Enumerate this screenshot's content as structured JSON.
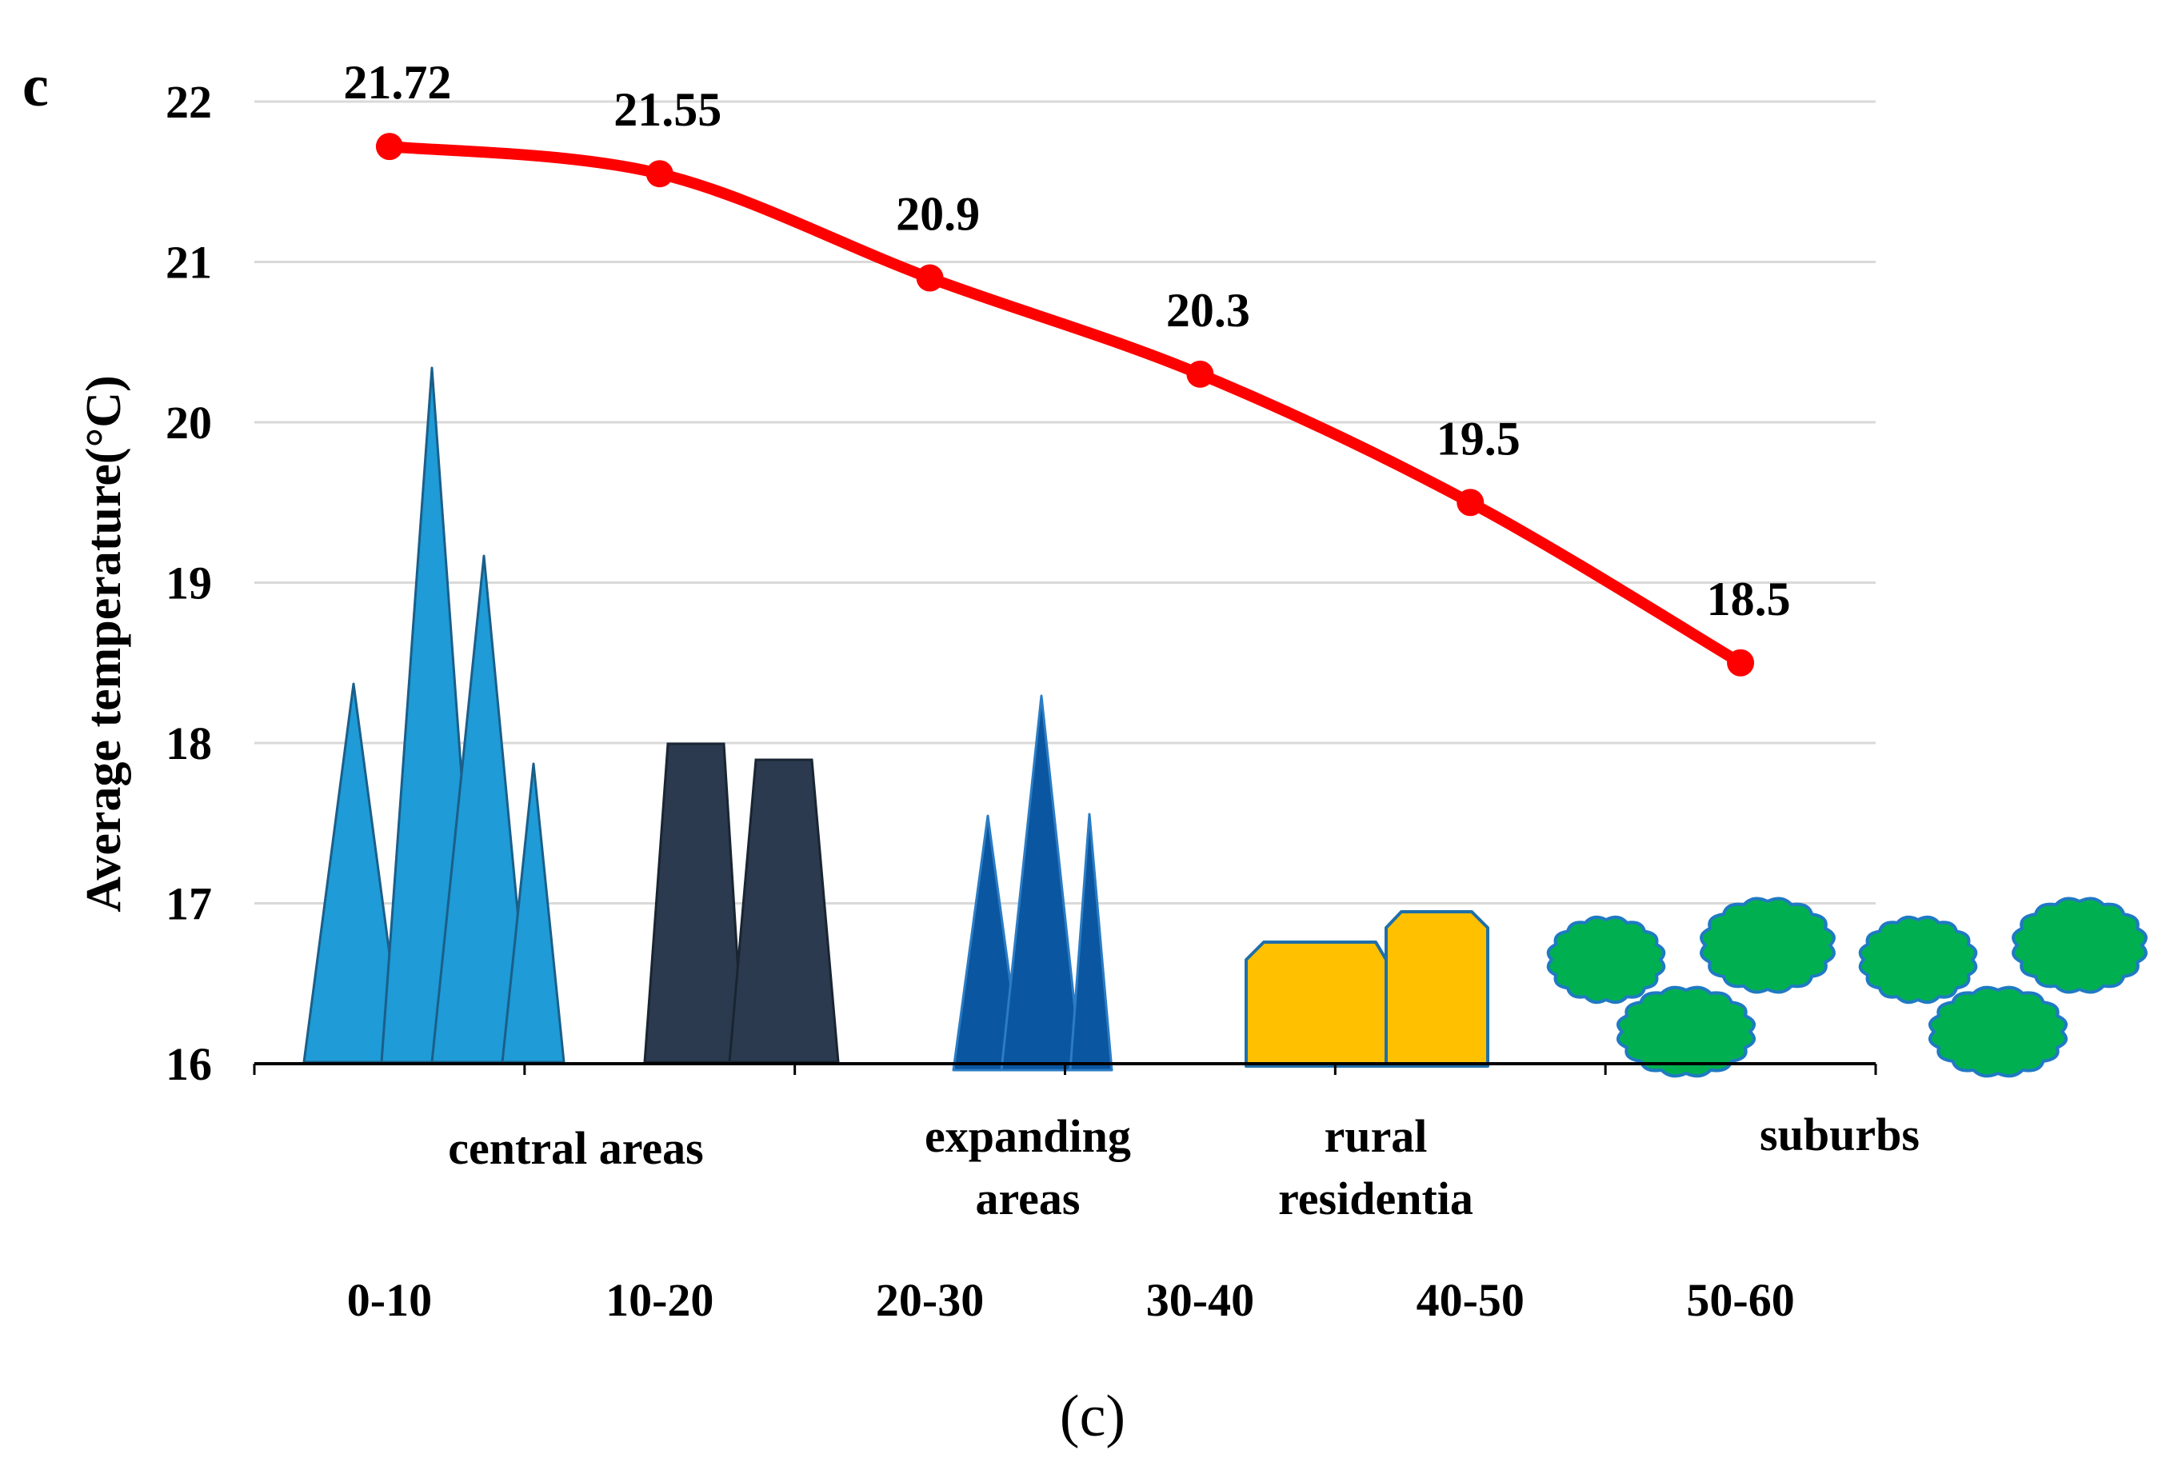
{
  "panel_letter": "c",
  "caption": "(c)",
  "chart_data": {
    "type": "line",
    "title": "",
    "xlabel": "",
    "ylabel": "Average temperature(°C)",
    "categories": [
      "0-10",
      "10-20",
      "20-30",
      "30-40",
      "40-50",
      "50-60"
    ],
    "series": [
      {
        "name": "Average temperature",
        "values": [
          21.72,
          21.55,
          20.9,
          20.3,
          19.5,
          18.5
        ],
        "color": "#ff0000"
      }
    ],
    "data_labels": [
      "21.72",
      "21.55",
      "20.9",
      "20.3",
      "19.5",
      "18.5"
    ],
    "ylim": [
      16,
      22
    ],
    "yticks": [
      16,
      17,
      18,
      19,
      20,
      21,
      22
    ],
    "grid": true,
    "zone_labels": [
      {
        "lines": [
          "central areas"
        ]
      },
      {
        "lines": [
          "expanding",
          "areas"
        ]
      },
      {
        "lines": [
          "rural",
          "residentia"
        ]
      },
      {
        "lines": [
          "suburbs"
        ]
      }
    ]
  },
  "colors": {
    "line": "#ff0000",
    "grid": "#d9d9d9",
    "axis": "#000000",
    "skyscraper": "#1f9bd7",
    "tower": "#2b3a4e",
    "expanding": "#0a56a0",
    "house": "#ffc000",
    "house_edge": "#1f6fa8",
    "tree": "#00b050",
    "tree_edge": "#1f7ac2"
  },
  "icons": [
    "skyscraper-cluster-icon",
    "office-tower-icon",
    "expanding-buildings-icon",
    "rural-house-icon",
    "tree-cluster-icon",
    "tree-cluster-icon"
  ]
}
